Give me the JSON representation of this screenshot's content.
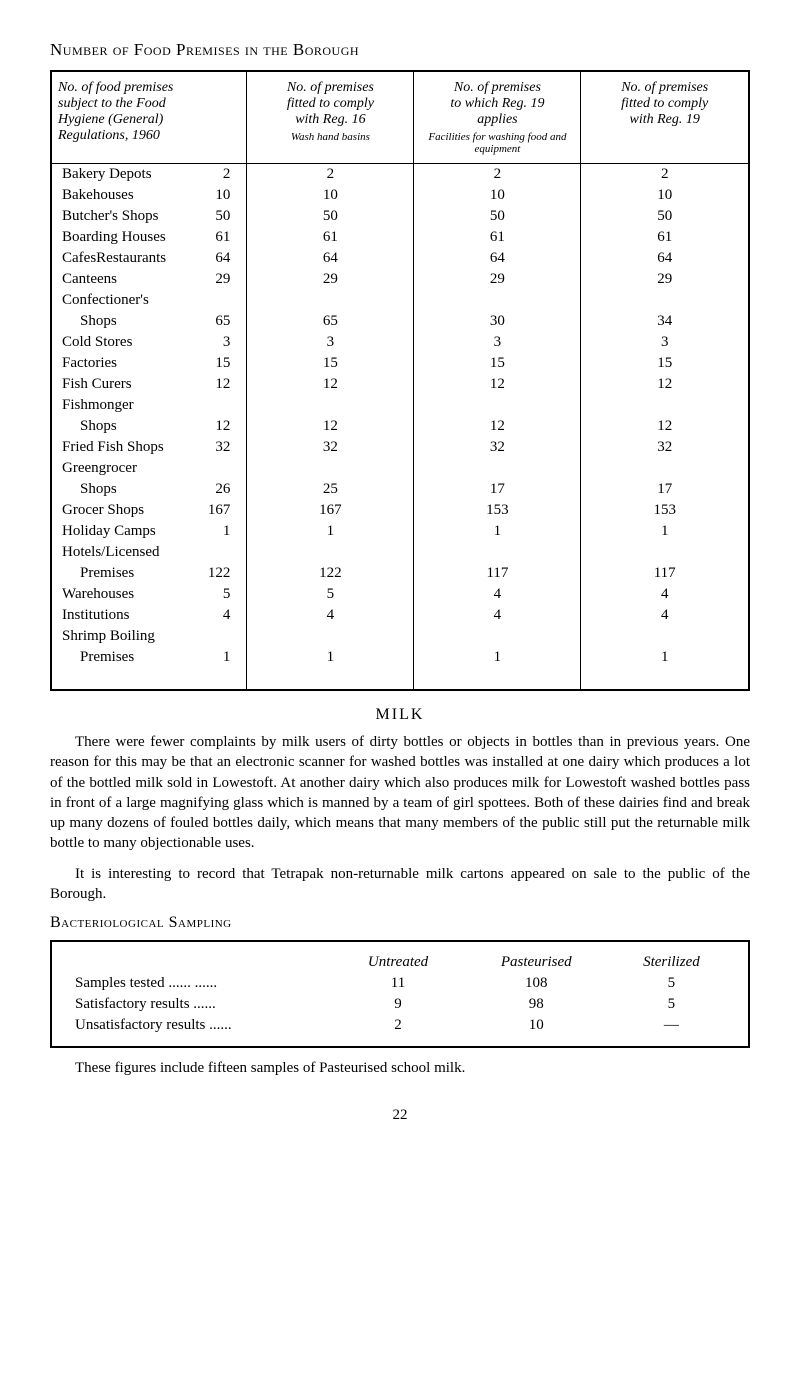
{
  "title": "Number of Food Premises in the Borough",
  "main_table": {
    "headers": {
      "col1_line1": "No. of food premises",
      "col1_line2": "subject to the Food",
      "col1_line3": "Hygiene (General)",
      "col1_line4": "Regulations, 1960",
      "col2_line1": "No. of premises",
      "col2_line2": "fitted to comply",
      "col2_line3": "with Reg. 16",
      "col2_small": "Wash hand basins",
      "col3_line1": "No. of premises",
      "col3_line2": "to which Reg. 19",
      "col3_line3": "applies",
      "col4_line1": "No. of premises",
      "col4_line2": "fitted to comply",
      "col4_line3": "with Reg. 19",
      "facilities_note": "Facilities for washing food and equipment"
    },
    "rows": [
      {
        "name": "Bakery Depots",
        "count": "2",
        "c2": "2",
        "c3": "2",
        "c4": "2",
        "indent": false
      },
      {
        "name": "Bakehouses",
        "count": "10",
        "c2": "10",
        "c3": "10",
        "c4": "10",
        "indent": false
      },
      {
        "name": "Butcher's Shops",
        "count": "50",
        "c2": "50",
        "c3": "50",
        "c4": "50",
        "indent": false
      },
      {
        "name": "Boarding Houses",
        "count": "61",
        "c2": "61",
        "c3": "61",
        "c4": "61",
        "indent": false
      },
      {
        "name": "CafesRestaurants",
        "count": "64",
        "c2": "64",
        "c3": "64",
        "c4": "64",
        "indent": false
      },
      {
        "name": "Canteens",
        "count": "29",
        "c2": "29",
        "c3": "29",
        "c4": "29",
        "indent": false
      },
      {
        "name": "Confectioner's",
        "count": "",
        "c2": "",
        "c3": "",
        "c4": "",
        "indent": false
      },
      {
        "name": "Shops",
        "count": "65",
        "c2": "65",
        "c3": "30",
        "c4": "34",
        "indent": true
      },
      {
        "name": "Cold Stores",
        "count": "3",
        "c2": "3",
        "c3": "3",
        "c4": "3",
        "indent": false
      },
      {
        "name": "Factories",
        "count": "15",
        "c2": "15",
        "c3": "15",
        "c4": "15",
        "indent": false
      },
      {
        "name": "Fish Curers",
        "count": "12",
        "c2": "12",
        "c3": "12",
        "c4": "12",
        "indent": false
      },
      {
        "name": "Fishmonger",
        "count": "",
        "c2": "",
        "c3": "",
        "c4": "",
        "indent": false
      },
      {
        "name": "Shops",
        "count": "12",
        "c2": "12",
        "c3": "12",
        "c4": "12",
        "indent": true
      },
      {
        "name": "Fried Fish Shops",
        "count": "32",
        "c2": "32",
        "c3": "32",
        "c4": "32",
        "indent": false
      },
      {
        "name": "Greengrocer",
        "count": "",
        "c2": "",
        "c3": "",
        "c4": "",
        "indent": false
      },
      {
        "name": "Shops",
        "count": "26",
        "c2": "25",
        "c3": "17",
        "c4": "17",
        "indent": true
      },
      {
        "name": "Grocer Shops",
        "count": "167",
        "c2": "167",
        "c3": "153",
        "c4": "153",
        "indent": false
      },
      {
        "name": "Holiday Camps",
        "count": "1",
        "c2": "1",
        "c3": "1",
        "c4": "1",
        "indent": false
      },
      {
        "name": "Hotels/Licensed",
        "count": "",
        "c2": "",
        "c3": "",
        "c4": "",
        "indent": false
      },
      {
        "name": "Premises",
        "count": "122",
        "c2": "122",
        "c3": "117",
        "c4": "117",
        "indent": true
      },
      {
        "name": "Warehouses",
        "count": "5",
        "c2": "5",
        "c3": "4",
        "c4": "4",
        "indent": false
      },
      {
        "name": "Institutions",
        "count": "4",
        "c2": "4",
        "c3": "4",
        "c4": "4",
        "indent": false
      },
      {
        "name": "Shrimp Boiling",
        "count": "",
        "c2": "",
        "c3": "",
        "c4": "",
        "indent": false
      },
      {
        "name": "Premises",
        "count": "1",
        "c2": "1",
        "c3": "1",
        "c4": "1",
        "indent": true
      }
    ]
  },
  "milk_section": {
    "title": "MILK",
    "para1": "There were fewer complaints by milk users of dirty bottles or objects in bottles than in previous years. One reason for this may be that an electronic scanner for washed bottles was installed at one dairy which produces a lot of the bottled milk sold in Lowestoft. At another dairy which also produces milk for Lowestoft washed bottles pass in front of a large magnifying glass which is manned by a team of girl spottees. Both of these dairies find and break up many dozens of fouled bottles daily, which means that many members of the public still put the returnable milk bottle to many objectionable uses.",
    "para2": "It is interesting to record that Tetrapak non-returnable milk cartons appeared on sale to the public of the Borough."
  },
  "bact_section": {
    "heading": "Bacteriological Sampling",
    "headers": {
      "blank": "",
      "untreated": "Untreated",
      "pasteurised": "Pasteurised",
      "sterilized": "Sterilized"
    },
    "rows": [
      {
        "label": "Samples tested ......   ......",
        "c1": "11",
        "c2": "108",
        "c3": "5"
      },
      {
        "label": "Satisfactory results   ......",
        "c1": "9",
        "c2": "98",
        "c3": "5"
      },
      {
        "label": "Unsatisfactory results ......",
        "c1": "2",
        "c2": "10",
        "c3": "—"
      }
    ]
  },
  "bottom_note": "These figures include fifteen samples of Pasteurised school milk.",
  "page_number": "22"
}
